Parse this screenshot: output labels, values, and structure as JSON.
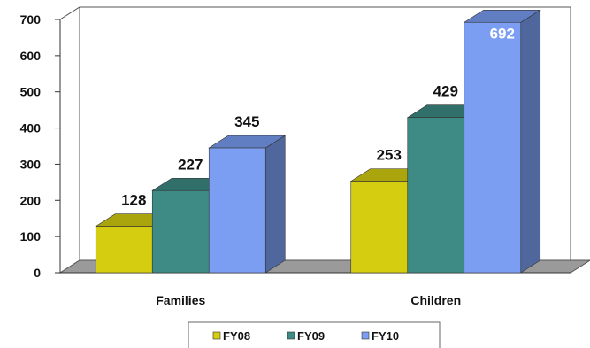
{
  "chart_data": {
    "type": "bar",
    "categories": [
      "Families",
      "Children"
    ],
    "series": [
      {
        "name": "FY08",
        "values": [
          128,
          253
        ],
        "color": "#d4cd10"
      },
      {
        "name": "FY09",
        "values": [
          227,
          429
        ],
        "color": "#3d8b84"
      },
      {
        "name": "FY10",
        "values": [
          345,
          692
        ],
        "color": "#7b9ef2"
      }
    ],
    "y_ticks": [
      "0",
      "100",
      "200",
      "300",
      "400",
      "500",
      "600",
      "700"
    ],
    "ylim": [
      0,
      700
    ],
    "grid": true,
    "legend_position": "bottom",
    "data_labels": [
      [
        "128",
        "253"
      ],
      [
        "227",
        "429"
      ],
      [
        "345",
        "692"
      ]
    ],
    "style": "3d-column"
  }
}
